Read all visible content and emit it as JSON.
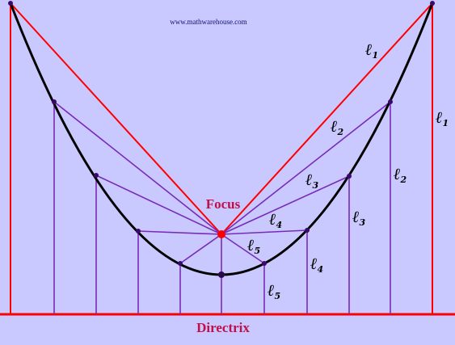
{
  "watermark": "www.mathwarehouse.com",
  "focus_label": "Focus",
  "directrix_label": "Directrix",
  "distance_letter": "ℓ",
  "distance_subscripts": [
    "1",
    "2",
    "3",
    "4",
    "5"
  ],
  "colors": {
    "background": "#c9c9ff",
    "parabola": "#000000",
    "outer_lines": "#ff0000",
    "inner_lines": "#7a2ab8",
    "focus_point": "#ff0000",
    "vertex_point": "#2a0a4a",
    "label_text": "#c0104a"
  }
}
